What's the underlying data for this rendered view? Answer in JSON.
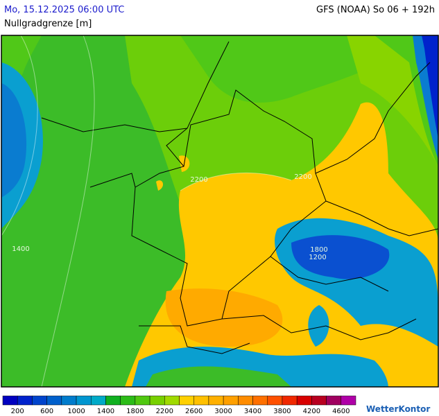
{
  "header": {
    "title": "Mo, 15.12.2025 06:00 UTC",
    "model": "GFS (NOAA) So 06 + 192h",
    "parameter": "Nullgradgrenze [m]"
  },
  "map": {
    "labels": [
      {
        "text": "2200"
      },
      {
        "text": "2200"
      },
      {
        "text": "1400"
      },
      {
        "text": "1800"
      },
      {
        "text": "1200"
      }
    ]
  },
  "legend": {
    "colors": [
      "#0000c0",
      "#0022cc",
      "#0044cc",
      "#0060cc",
      "#007ccc",
      "#0096d0",
      "#00aac8",
      "#10b020",
      "#2cbc18",
      "#50c810",
      "#78d000",
      "#a0da00",
      "#ffd000",
      "#ffc000",
      "#ffb000",
      "#ffa000",
      "#ff8c00",
      "#ff7000",
      "#ff5000",
      "#f02800",
      "#d80000",
      "#b80020",
      "#a00060",
      "#b000a8"
    ],
    "labels": [
      "200",
      "600",
      "1000",
      "1400",
      "1800",
      "2200",
      "2600",
      "3000",
      "3400",
      "3800",
      "4200",
      "4600"
    ]
  },
  "brand": "WetterKontor"
}
